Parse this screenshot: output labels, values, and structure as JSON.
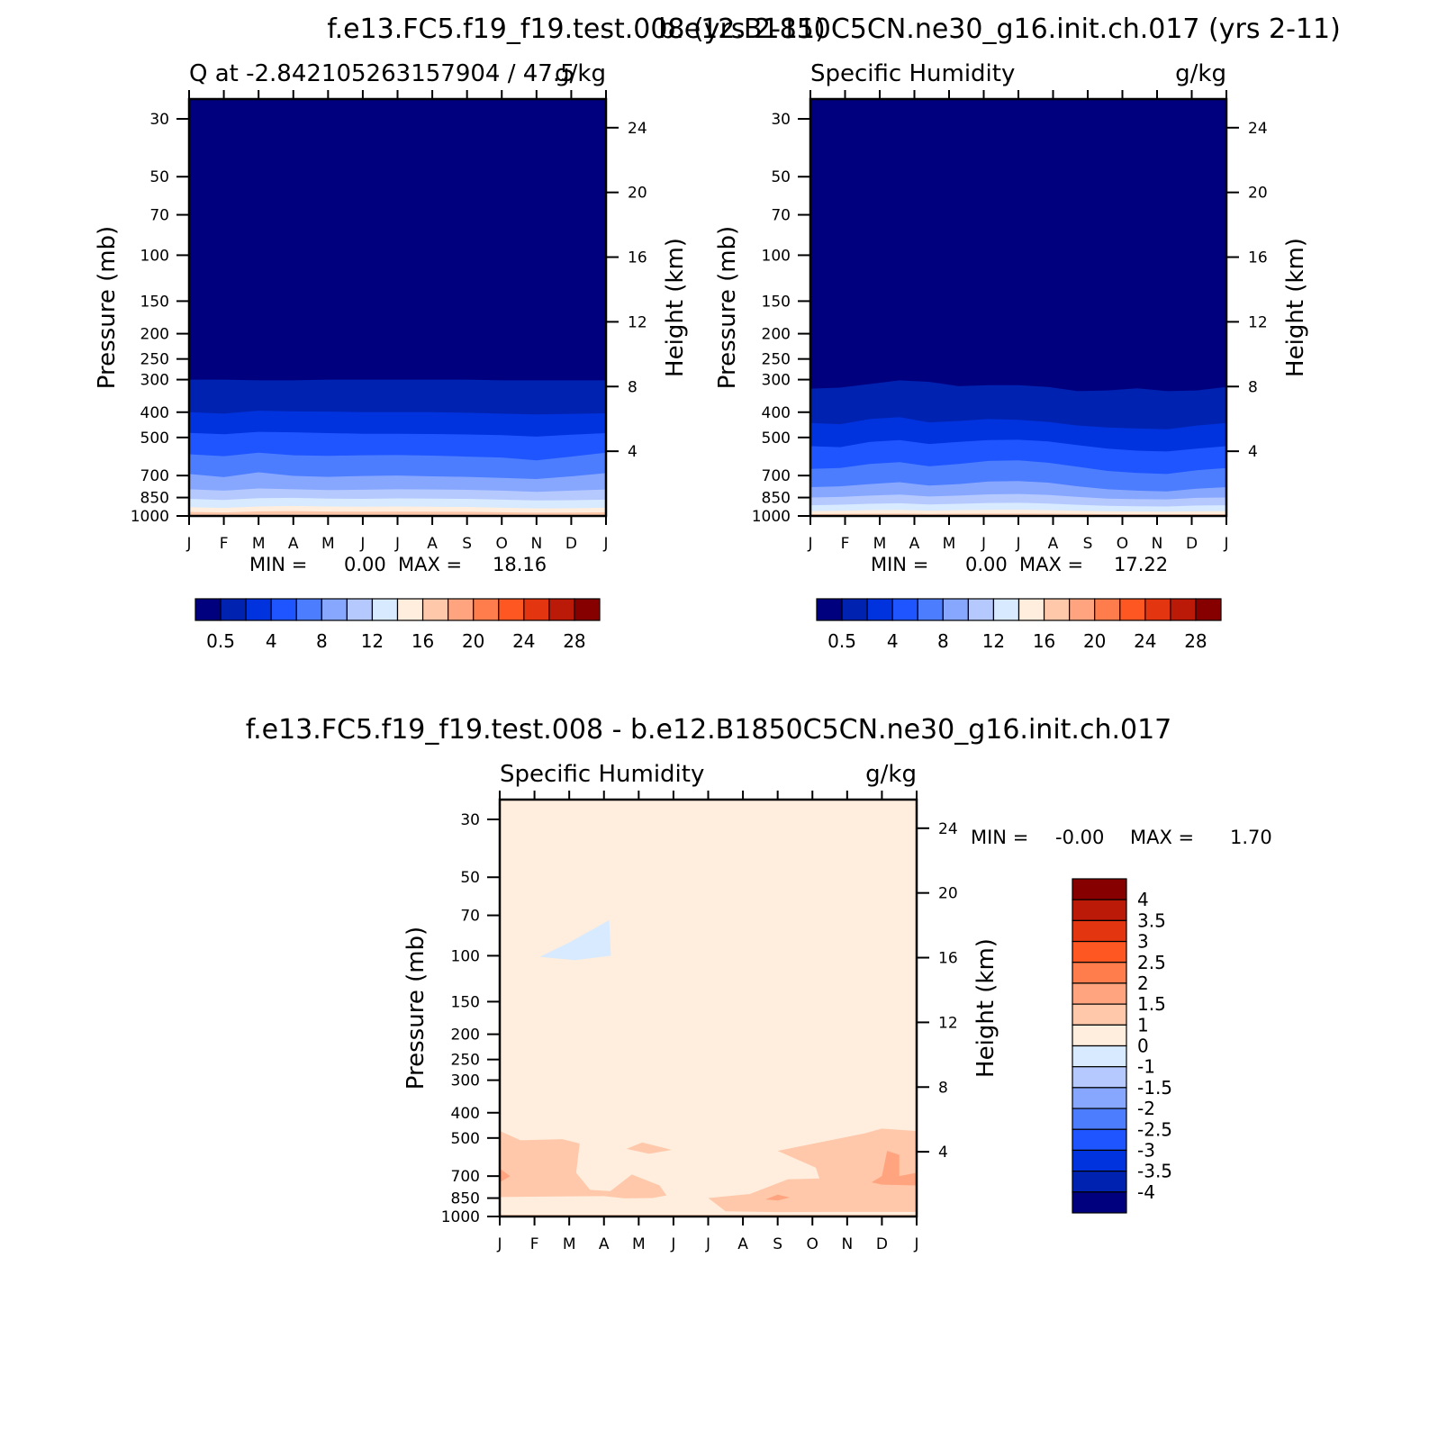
{
  "palette": [
    "#00007f",
    "#0022b0",
    "#0033dd",
    "#1f55ff",
    "#4c7dff",
    "#87a7ff",
    "#b5c9ff",
    "#d7eaff",
    "#ffeedd",
    "#ffc8aa",
    "#ffa47f",
    "#ff7c4d",
    "#ff5722",
    "#e33510",
    "#bb1a08",
    "#870000"
  ],
  "chart_data": [
    {
      "type": "contour",
      "main_title": "f.e13.FC5.f19_f19.test.008 (yrs 2-11)",
      "title_left": "Q at -2.842105263157904 / 47.5",
      "title_right": "g/kg",
      "ylabel": "Pressure (mb)",
      "ylabel_right": "Height (km)",
      "x_ticks": [
        "J",
        "F",
        "M",
        "A",
        "M",
        "J",
        "J",
        "A",
        "S",
        "O",
        "N",
        "D",
        "J"
      ],
      "pressure_ticks": [
        "30",
        "50",
        "70",
        "100",
        "150",
        "200",
        "250",
        "300",
        "400",
        "500",
        "700",
        "850",
        "1000"
      ],
      "pressure_values": [
        30,
        50,
        70,
        100,
        150,
        200,
        250,
        300,
        400,
        500,
        700,
        850,
        1000
      ],
      "height_ticks": [
        "24",
        "20",
        "16",
        "12",
        "8",
        "4"
      ],
      "height_values": [
        24,
        20,
        16,
        12,
        8,
        4
      ],
      "min_label": "MIN =",
      "min_value": "0.00",
      "max_label": "MAX =",
      "max_value": "18.16",
      "colorbar_labels": [
        "0.5",
        "4",
        "8",
        "12",
        "16",
        "20",
        "24",
        "28"
      ],
      "band_boundaries_mb": [
        [
          300,
          300,
          302,
          302,
          300,
          300,
          300,
          300,
          300,
          302,
          302,
          302,
          302
        ],
        [
          400,
          405,
          395,
          397,
          398,
          400,
          400,
          400,
          402,
          405,
          408,
          406,
          404
        ],
        [
          480,
          486,
          476,
          478,
          481,
          484,
          484,
          485,
          487,
          490,
          496,
          488,
          481
        ],
        [
          580,
          590,
          572,
          585,
          588,
          585,
          584,
          587,
          592,
          597,
          612,
          592,
          572
        ],
        [
          690,
          710,
          680,
          702,
          708,
          703,
          700,
          705,
          708,
          715,
          722,
          705,
          685
        ],
        [
          790,
          800,
          785,
          790,
          796,
          793,
          790,
          792,
          794,
          800,
          808,
          800,
          792
        ],
        [
          860,
          868,
          855,
          852,
          858,
          860,
          856,
          858,
          860,
          866,
          872,
          870,
          866
        ],
        [
          925,
          932,
          920,
          915,
          920,
          922,
          920,
          922,
          924,
          930,
          936,
          935,
          930
        ],
        [
          965,
          970,
          960,
          958,
          962,
          963,
          962,
          963,
          964,
          968,
          972,
          971,
          968
        ]
      ]
    },
    {
      "type": "contour",
      "main_title": "b.e12.B1850C5CN.ne30_g16.init.ch.017 (yrs 2-11)",
      "title_left": "Specific Humidity",
      "title_right": "g/kg",
      "ylabel": "Pressure (mb)",
      "ylabel_right": "Height (km)",
      "x_ticks": [
        "J",
        "F",
        "M",
        "A",
        "M",
        "J",
        "J",
        "A",
        "S",
        "O",
        "N",
        "D",
        "J"
      ],
      "pressure_ticks": [
        "30",
        "50",
        "70",
        "100",
        "150",
        "200",
        "250",
        "300",
        "400",
        "500",
        "700",
        "850",
        "1000"
      ],
      "pressure_values": [
        30,
        50,
        70,
        100,
        150,
        200,
        250,
        300,
        400,
        500,
        700,
        850,
        1000
      ],
      "height_ticks": [
        "24",
        "20",
        "16",
        "12",
        "8",
        "4"
      ],
      "height_values": [
        24,
        20,
        16,
        12,
        8,
        4
      ],
      "min_label": "MIN =",
      "min_value": "0.00",
      "max_label": "MAX =",
      "max_value": "17.22",
      "colorbar_labels": [
        "0.5",
        "4",
        "8",
        "12",
        "16",
        "20",
        "24",
        "28"
      ],
      "band_boundaries_mb": [
        [
          325,
          322,
          312,
          302,
          306,
          318,
          315,
          315,
          320,
          332,
          330,
          324,
          332,
          330,
          320
        ],
        [
          440,
          445,
          425,
          418,
          438,
          432,
          425,
          428,
          436,
          450,
          458,
          462,
          465,
          450,
          440
        ],
        [
          540,
          545,
          520,
          512,
          530,
          520,
          512,
          510,
          518,
          535,
          552,
          562,
          566,
          552,
          540
        ],
        [
          660,
          655,
          632,
          622,
          645,
          632,
          615,
          612,
          625,
          648,
          672,
          684,
          690,
          668,
          655
        ],
        [
          775,
          770,
          755,
          742,
          765,
          755,
          738,
          735,
          745,
          770,
          790,
          800,
          805,
          786,
          775
        ],
        [
          850,
          845,
          835,
          828,
          842,
          835,
          826,
          824,
          830,
          845,
          858,
          862,
          864,
          852,
          850
        ],
        [
          910,
          905,
          898,
          894,
          904,
          898,
          892,
          890,
          896,
          906,
          914,
          918,
          920,
          912,
          910
        ],
        [
          958,
          955,
          950,
          948,
          954,
          950,
          948,
          947,
          950,
          955,
          960,
          962,
          963,
          960,
          958
        ],
        [
          984,
          982,
          980,
          979,
          982,
          980,
          979,
          979,
          980,
          982,
          984,
          985,
          985,
          984,
          984
        ]
      ]
    },
    {
      "type": "contour",
      "main_title": "f.e13.FC5.f19_f19.test.008 - b.e12.B1850C5CN.ne30_g16.init.ch.017",
      "title_left": "Specific Humidity",
      "title_right": "g/kg",
      "ylabel": "Pressure (mb)",
      "ylabel_right": "Height (km)",
      "x_ticks": [
        "J",
        "F",
        "M",
        "A",
        "M",
        "J",
        "J",
        "A",
        "S",
        "O",
        "N",
        "D",
        "J"
      ],
      "pressure_ticks": [
        "30",
        "50",
        "70",
        "100",
        "150",
        "200",
        "250",
        "300",
        "400",
        "500",
        "700",
        "850",
        "1000"
      ],
      "pressure_values": [
        30,
        50,
        70,
        100,
        150,
        200,
        250,
        300,
        400,
        500,
        700,
        850,
        1000
      ],
      "height_ticks": [
        "24",
        "20",
        "16",
        "12",
        "8",
        "4"
      ],
      "height_values": [
        24,
        20,
        16,
        12,
        8,
        4
      ],
      "min_label": "MIN =",
      "min_value": "-0.00",
      "max_label": "MAX =",
      "max_value": "1.70",
      "colorbar_labels": [
        "4",
        "3.5",
        "3",
        "2.5",
        "2",
        "1.5",
        "1",
        "0",
        "-1",
        "-1.5",
        "-2",
        "-2.5",
        "-3",
        "-3.5",
        "-4"
      ],
      "colorbar_colors": [
        "#870000",
        "#bb1a08",
        "#e33510",
        "#ff5722",
        "#ff7c4d",
        "#ffa47f",
        "#ffc8aa",
        "#ffeedd",
        "#d7eaff",
        "#b5c9ff",
        "#87a7ff",
        "#4c7dff",
        "#1f55ff",
        "#0033dd",
        "#0022b0",
        "#00007f"
      ],
      "background_range": "0 to 1",
      "regions": [
        {
          "range": "-1 to 0",
          "points": [
            [
              1.15,
              101
            ],
            [
              2.0,
              89
            ],
            [
              3.15,
              73
            ],
            [
              3.2,
              100
            ],
            [
              2.15,
              104
            ]
          ]
        },
        {
          "range": "1 to 1.5",
          "points": [
            [
              0,
              470
            ],
            [
              0.6,
              510
            ],
            [
              1.8,
              505
            ],
            [
              2.3,
              525
            ],
            [
              2.2,
              680
            ],
            [
              2.6,
              790
            ],
            [
              3.2,
              800
            ],
            [
              3.0,
              835
            ],
            [
              0.6,
              840
            ],
            [
              0,
              842
            ]
          ]
        },
        {
          "range": "1 to 1.5",
          "points": [
            [
              3.0,
              835
            ],
            [
              3.8,
              690
            ],
            [
              4.6,
              760
            ],
            [
              4.8,
              830
            ],
            [
              4.4,
              850
            ],
            [
              3.6,
              852
            ]
          ]
        },
        {
          "range": "1 to 1.5",
          "points": [
            [
              3.65,
              550
            ],
            [
              4.1,
              520
            ],
            [
              4.95,
              555
            ],
            [
              4.3,
              575
            ]
          ]
        },
        {
          "range": "1 to 1.5",
          "points": [
            [
              6.0,
              850
            ],
            [
              7.2,
              820
            ],
            [
              8.3,
              720
            ],
            [
              9.2,
              715
            ],
            [
              9.1,
              650
            ],
            [
              8.0,
              560
            ],
            [
              10.5,
              480
            ],
            [
              11.0,
              460
            ],
            [
              12,
              470
            ],
            [
              12,
              960
            ],
            [
              10,
              960
            ],
            [
              8,
              962
            ],
            [
              6.5,
              955
            ]
          ]
        },
        {
          "range": "1.5 to 2",
          "points": [
            [
              0,
              655
            ],
            [
              0.3,
              700
            ],
            [
              0,
              740
            ]
          ]
        },
        {
          "range": "1.5 to 2",
          "points": [
            [
              11.0,
              700
            ],
            [
              11.15,
              560
            ],
            [
              11.5,
              580
            ],
            [
              11.5,
              700
            ],
            [
              12,
              680
            ],
            [
              12,
              760
            ],
            [
              11.0,
              755
            ],
            [
              10.7,
              740
            ]
          ]
        },
        {
          "range": "1.5 to 2",
          "points": [
            [
              7.65,
              860
            ],
            [
              8.0,
              825
            ],
            [
              8.35,
              845
            ],
            [
              8.0,
              868
            ]
          ]
        },
        {
          "range": "1 to 1.5",
          "points": [
            [
              0,
              985
            ],
            [
              12,
              985
            ],
            [
              12,
              1000
            ],
            [
              0,
              1000
            ]
          ]
        }
      ]
    }
  ]
}
